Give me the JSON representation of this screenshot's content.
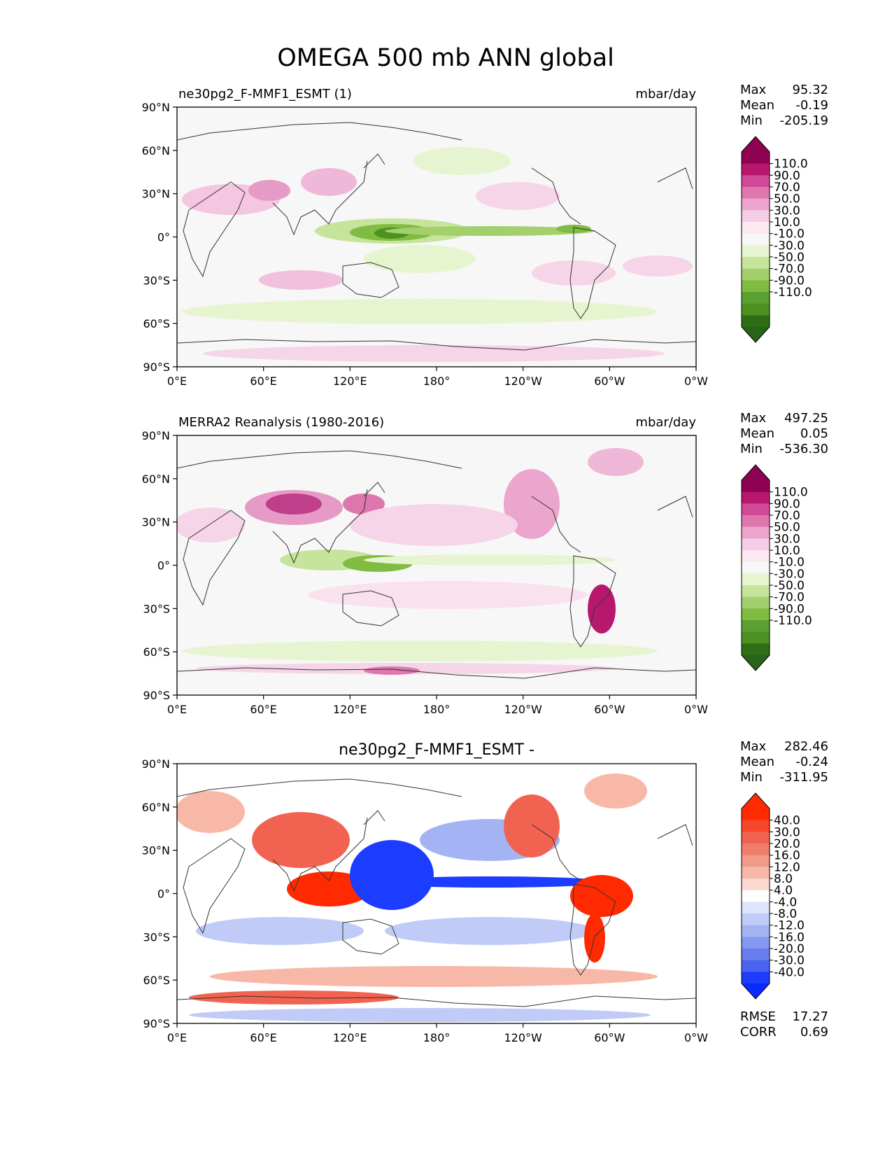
{
  "figure": {
    "title": "OMEGA 500 mb ANN global"
  },
  "lat_ticks": [
    "90°N",
    "60°N",
    "30°N",
    "0°",
    "30°S",
    "60°S",
    "90°S"
  ],
  "lon_ticks": [
    "0°E",
    "60°E",
    "120°E",
    "180°",
    "120°W",
    "60°W",
    "0°W"
  ],
  "panels": [
    {
      "id": "test",
      "title_left": "ne30pg2_F-MMF1_ESMT (1)",
      "title_right": "mbar/day",
      "title_center": "",
      "stats": [
        {
          "label": "Max",
          "value": "95.32"
        },
        {
          "label": "Mean",
          "value": "-0.19"
        },
        {
          "label": "Min",
          "value": "-205.19"
        }
      ],
      "colorbar": {
        "labels": [
          "110.0",
          "90.0",
          "70.0",
          "50.0",
          "30.0",
          "10.0",
          "-10.0",
          "-30.0",
          "-50.0",
          "-70.0",
          "-90.0",
          "-110.0"
        ],
        "colors": [
          "#8e0152",
          "#b8176e",
          "#d14a98",
          "#de77ae",
          "#eca5cd",
          "#f6cde6",
          "#fde8f2",
          "#f7f7f7",
          "#e6f5d0",
          "#c6e49b",
          "#a3d06c",
          "#7fbc41",
          "#5aa032",
          "#4d9221",
          "#2f6d17"
        ],
        "end_top": "#8e0152",
        "end_bottom": "#276419"
      }
    },
    {
      "id": "reference",
      "title_left": "MERRA2 Reanalysis (1980-2016)",
      "title_right": "mbar/day",
      "title_center": "",
      "stats": [
        {
          "label": "Max",
          "value": "497.25"
        },
        {
          "label": "Mean",
          "value": "0.05"
        },
        {
          "label": "Min",
          "value": "-536.30"
        }
      ],
      "colorbar": {
        "labels": [
          "110.0",
          "90.0",
          "70.0",
          "50.0",
          "30.0",
          "10.0",
          "-10.0",
          "-30.0",
          "-50.0",
          "-70.0",
          "-90.0",
          "-110.0"
        ],
        "colors": [
          "#8e0152",
          "#b8176e",
          "#d14a98",
          "#de77ae",
          "#eca5cd",
          "#f6cde6",
          "#fde8f2",
          "#f7f7f7",
          "#e6f5d0",
          "#c6e49b",
          "#a3d06c",
          "#7fbc41",
          "#5aa032",
          "#4d9221",
          "#2f6d17"
        ],
        "end_top": "#8e0152",
        "end_bottom": "#276419"
      }
    },
    {
      "id": "difference",
      "title_left": "",
      "title_right": "",
      "title_center": "ne30pg2_F-MMF1_ESMT -",
      "stats": [
        {
          "label": "Max",
          "value": "282.46"
        },
        {
          "label": "Mean",
          "value": "-0.24"
        },
        {
          "label": "Min",
          "value": "-311.95"
        }
      ],
      "extra_stats": [
        {
          "label": "RMSE",
          "value": "17.27"
        },
        {
          "label": "CORR",
          "value": "0.69"
        }
      ],
      "colorbar": {
        "labels": [
          "40.0",
          "30.0",
          "20.0",
          "16.0",
          "12.0",
          "8.0",
          "4.0",
          "-4.0",
          "-8.0",
          "-12.0",
          "-16.0",
          "-20.0",
          "-30.0",
          "-40.0"
        ],
        "colors": [
          "#ff2a00",
          "#f7462b",
          "#f16350",
          "#ef7e6c",
          "#f29a88",
          "#f7b8a8",
          "#fbd8cf",
          "#ffffff",
          "#dde4fb",
          "#c0ccf7",
          "#a3b3f3",
          "#8598ef",
          "#677ded",
          "#4a63f0",
          "#1c3cff"
        ],
        "end_top": "#ff2a00",
        "end_bottom": "#0a2bff"
      }
    }
  ]
}
